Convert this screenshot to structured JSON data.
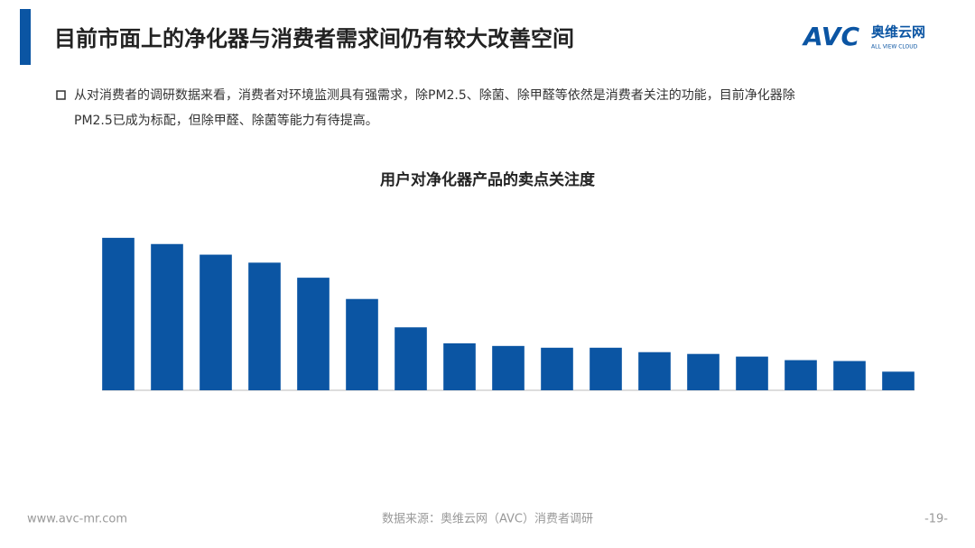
{
  "header": {
    "title": "目前市面上的净化器与消费者需求间仍有较大改善空间",
    "logo": "AVC",
    "brand": "奥维云网",
    "brand_en": "ALL VIEW CLOUD"
  },
  "bullet": {
    "lines": [
      "从对消费者的调研数据来看，消费者对环境监测具有强需求，除PM2.5、除菌、除甲醛等依然是消费者关注的功能，目前净化器除",
      "PM2.5已成为标配，但除甲醛、除菌等能力有待提高。"
    ]
  },
  "chart_data": {
    "type": "bar",
    "title": "用户对净化器产品的卖点关注度",
    "categories": [
      null,
      null,
      null,
      null,
      null,
      null,
      null,
      null,
      null,
      null,
      null,
      null,
      null,
      null,
      null,
      null,
      null
    ],
    "values": [
      172,
      165,
      153,
      144,
      127,
      103,
      71,
      53,
      50,
      48,
      48,
      43,
      41,
      38,
      34,
      33,
      21
    ],
    "color": "#0b55a3",
    "ylim": [
      0,
      180
    ]
  },
  "footer": {
    "url": "www.avc-mr.com",
    "source": "数据来源：奥维云网（AVC）消费者调研",
    "page": "-19-"
  }
}
